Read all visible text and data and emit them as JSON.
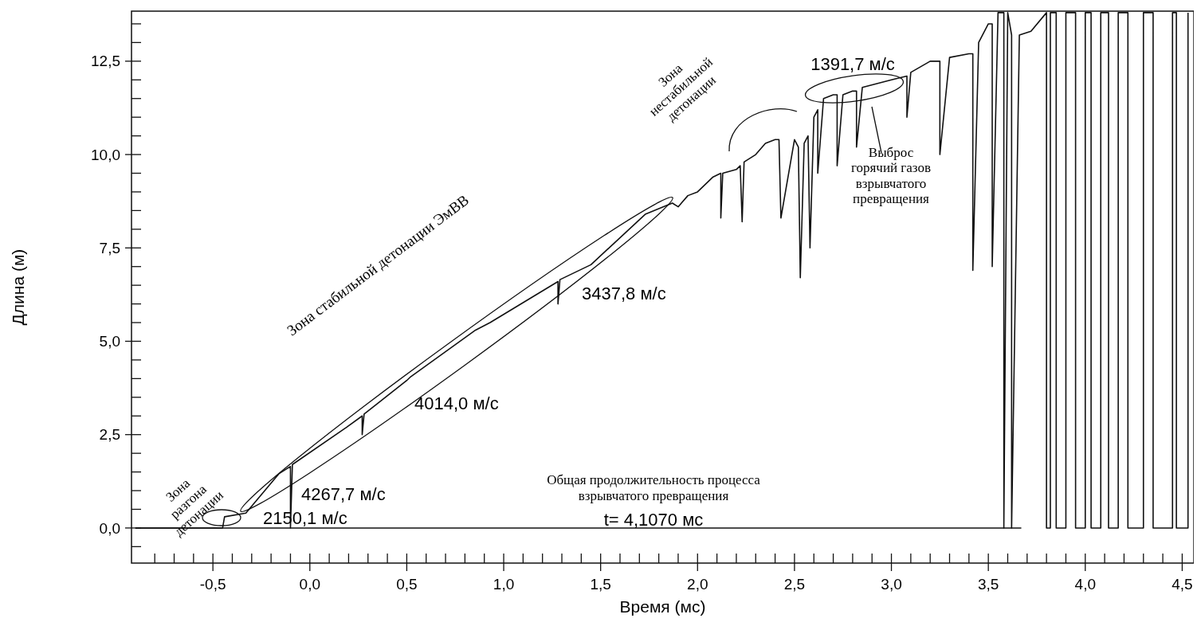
{
  "chart_data": {
    "type": "line",
    "xlabel": "Время (мс)",
    "ylabel": "Длина (м)",
    "xlim": [
      -0.92,
      4.56
    ],
    "ylim": [
      -0.94,
      13.84
    ],
    "xticks": [
      {
        "value": -0.8,
        "label": null
      },
      {
        "value": -0.7,
        "label": null
      },
      {
        "value": -0.6,
        "label": null
      },
      {
        "value": -0.5,
        "label": "-0,5"
      },
      {
        "value": -0.4,
        "label": null
      },
      {
        "value": -0.3,
        "label": null
      },
      {
        "value": -0.2,
        "label": null
      },
      {
        "value": -0.1,
        "label": null
      },
      {
        "value": 0,
        "label": "0,0"
      },
      {
        "value": 0.1,
        "label": null
      },
      {
        "value": 0.2,
        "label": null
      },
      {
        "value": 0.3,
        "label": null
      },
      {
        "value": 0.4,
        "label": null
      },
      {
        "value": 0.5,
        "label": "0,5"
      },
      {
        "value": 0.6,
        "label": null
      },
      {
        "value": 0.7,
        "label": null
      },
      {
        "value": 0.8,
        "label": null
      },
      {
        "value": 0.9,
        "label": null
      },
      {
        "value": 1,
        "label": "1,0"
      },
      {
        "value": 1.1,
        "label": null
      },
      {
        "value": 1.2,
        "label": null
      },
      {
        "value": 1.3,
        "label": null
      },
      {
        "value": 1.4,
        "label": null
      },
      {
        "value": 1.5,
        "label": "1,5"
      },
      {
        "value": 1.6,
        "label": null
      },
      {
        "value": 1.7,
        "label": null
      },
      {
        "value": 1.8,
        "label": null
      },
      {
        "value": 1.9,
        "label": null
      },
      {
        "value": 2,
        "label": "2,0"
      },
      {
        "value": 2.1,
        "label": null
      },
      {
        "value": 2.2,
        "label": null
      },
      {
        "value": 2.3,
        "label": null
      },
      {
        "value": 2.4,
        "label": null
      },
      {
        "value": 2.5,
        "label": "2,5"
      },
      {
        "value": 2.6,
        "label": null
      },
      {
        "value": 2.7,
        "label": null
      },
      {
        "value": 2.8,
        "label": null
      },
      {
        "value": 2.9,
        "label": null
      },
      {
        "value": 3,
        "label": "3,0"
      },
      {
        "value": 3.1,
        "label": null
      },
      {
        "value": 3.2,
        "label": null
      },
      {
        "value": 3.3,
        "label": null
      },
      {
        "value": 3.4,
        "label": null
      },
      {
        "value": 3.5,
        "label": "3,5"
      },
      {
        "value": 3.6,
        "label": null
      },
      {
        "value": 3.7,
        "label": null
      },
      {
        "value": 3.8,
        "label": null
      },
      {
        "value": 3.9,
        "label": null
      },
      {
        "value": 4,
        "label": "4,0"
      },
      {
        "value": 4.1,
        "label": null
      },
      {
        "value": 4.2,
        "label": null
      },
      {
        "value": 4.3,
        "label": null
      },
      {
        "value": 4.4,
        "label": null
      },
      {
        "value": 4.5,
        "label": "4,5"
      }
    ],
    "yticks": [
      {
        "value": -0.5,
        "label": null
      },
      {
        "value": 0,
        "label": "0,0"
      },
      {
        "value": 0.5,
        "label": null
      },
      {
        "value": 1,
        "label": null
      },
      {
        "value": 1.5,
        "label": null
      },
      {
        "value": 2,
        "label": null
      },
      {
        "value": 2.5,
        "label": "2,5"
      },
      {
        "value": 3,
        "label": null
      },
      {
        "value": 3.5,
        "label": null
      },
      {
        "value": 4,
        "label": null
      },
      {
        "value": 4.5,
        "label": null
      },
      {
        "value": 5,
        "label": "5,0"
      },
      {
        "value": 5.5,
        "label": null
      },
      {
        "value": 6,
        "label": null
      },
      {
        "value": 6.5,
        "label": null
      },
      {
        "value": 7,
        "label": null
      },
      {
        "value": 7.5,
        "label": "7,5"
      },
      {
        "value": 8,
        "label": null
      },
      {
        "value": 8.5,
        "label": null
      },
      {
        "value": 9,
        "label": null
      },
      {
        "value": 9.5,
        "label": null
      },
      {
        "value": 10,
        "label": "10,0"
      },
      {
        "value": 10.5,
        "label": null
      },
      {
        "value": 11,
        "label": null
      },
      {
        "value": 11.5,
        "label": null
      },
      {
        "value": 12,
        "label": null
      },
      {
        "value": 12.5,
        "label": "12,5"
      },
      {
        "value": 13,
        "label": null
      },
      {
        "value": 13.5,
        "label": null
      }
    ],
    "grid": false,
    "series": [
      {
        "color": "#111111",
        "x": [
          -0.9,
          -0.45,
          -0.44,
          -0.33,
          -0.16,
          -0.1,
          -0.1,
          -0.09,
          0.19,
          0.27,
          0.27,
          0.28,
          0.5,
          0.52,
          0.855,
          0.93,
          1.28,
          1.28,
          1.29,
          1.45,
          1.73,
          1.87,
          1.9,
          1.95,
          2.0,
          2.08,
          2.12,
          2.12,
          2.13,
          2.2,
          2.22,
          2.23,
          2.24,
          2.3,
          2.35,
          2.4,
          2.42,
          2.43,
          2.5,
          2.52,
          2.53,
          2.55,
          2.57,
          2.58,
          2.6,
          2.62,
          2.62,
          2.65,
          2.7,
          2.72,
          2.72,
          2.75,
          2.8,
          2.82,
          2.82,
          2.85,
          3.0,
          3.08,
          3.08,
          3.1,
          3.2,
          3.25,
          3.25,
          3.3,
          3.4,
          3.42,
          3.42,
          3.45,
          3.5,
          3.52,
          3.52,
          3.55,
          3.58,
          3.58,
          3.6,
          3.62,
          3.62,
          3.66,
          3.72,
          3.8,
          3.8,
          3.82,
          3.82,
          3.85,
          3.85,
          3.9,
          3.9,
          3.95,
          3.95,
          4.0,
          4.0,
          4.03,
          4.03,
          4.08,
          4.08,
          4.12,
          4.12,
          4.17,
          4.17,
          4.22,
          4.22,
          4.3,
          4.3,
          4.35,
          4.35,
          4.45,
          4.45,
          4.47,
          4.47,
          4.53,
          4.53
        ],
        "values": [
          0,
          0,
          0.3,
          0.4,
          1.45,
          1.65,
          0,
          1.7,
          2.7,
          3.0,
          2.5,
          3.05,
          3.95,
          4.05,
          5.3,
          5.5,
          6.6,
          6.0,
          6.65,
          7.05,
          8.4,
          8.7,
          8.6,
          8.9,
          9.0,
          9.4,
          9.5,
          8.3,
          9.5,
          9.6,
          9.7,
          8.2,
          9.8,
          10.0,
          10.3,
          10.4,
          10.4,
          8.3,
          10.4,
          10.2,
          6.7,
          10.3,
          10.5,
          7.5,
          11.0,
          11.2,
          9.5,
          11.5,
          11.6,
          11.6,
          9.7,
          11.6,
          11.7,
          11.7,
          10.2,
          11.8,
          12.0,
          12.1,
          11.0,
          12.2,
          12.5,
          12.5,
          10.0,
          12.6,
          12.7,
          12.7,
          6.9,
          13.0,
          13.5,
          13.5,
          7.0,
          13.8,
          13.8,
          0,
          13.8,
          13.2,
          0,
          13.2,
          13.3,
          13.8,
          0,
          0,
          13.8,
          13.8,
          0,
          0,
          13.8,
          13.8,
          0,
          0,
          13.8,
          13.8,
          0,
          0,
          13.8,
          13.8,
          0,
          0,
          13.8,
          13.8,
          0,
          0,
          13.8,
          13.8,
          0,
          0,
          13.8,
          13.8,
          0,
          0,
          13.8
        ]
      },
      {
        "color": "#111111",
        "x": [
          -0.9,
          3.67
        ],
        "values": [
          0,
          0
        ]
      }
    ],
    "annotations": [
      "Зона\nразгона\nдетонации",
      "Зона стабильной детонации ЭмВВ",
      "Зона\nнестабильной\nдетонации",
      "Выброс\nгорячий газов\nвзрывчатого\nпревращения",
      "1391,7 м/с",
      "3437,8 м/с",
      "4014,0 м/с",
      "4267,7 м/с",
      "2150,1 м/с",
      "Общая продолжительность процесса\nвзрывчатого превращения",
      "t= 4,1070 мс"
    ]
  }
}
